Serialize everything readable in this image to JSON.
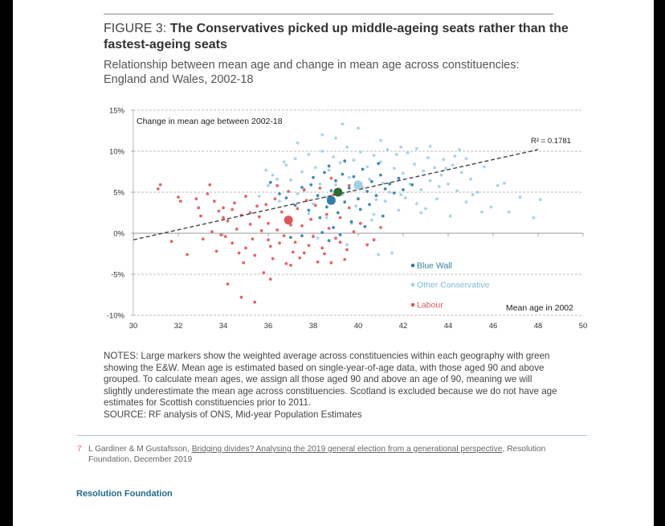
{
  "figure": {
    "label": "FIGURE 3:",
    "title": "The Conservatives picked up middle-ageing seats rather than the fastest-ageing seats",
    "subtitle_line1": "Relationship between mean age and change in mean age across constituencies:",
    "subtitle_line2": "England and Wales, 2002-18"
  },
  "notes": {
    "text": "NOTES: Large markers show the weighted average across constituencies within each geography with green showing the E&W. Mean age is estimated based on single-year-of-age data, with those aged 90 and above grouped. To calculate mean ages, we assign all those aged 90 and above an age of 90, meaning we will slightly underestimate the mean age across constituencies. Scotland is excluded because we do not have age estimates for Scottish constituencies prior to 2011.",
    "source": "SOURCE: RF analysis of ONS, Mid-year Population Estimates"
  },
  "footnote": {
    "number": "7",
    "prefix": "L Gardiner & M Gustafsson, ",
    "ref_title": "Bridging divides? Analysing the 2019 general election from a generational perspective",
    "suffix": ", Resolution",
    "line2": "Foundation, December 2019"
  },
  "brand": "Resolution Foundation",
  "colors": {
    "blue_wall": "#2e7ea6",
    "other_conservative": "#9fd0e4",
    "labour": "#e0575b",
    "ew_average": "#2e6b2e",
    "trend": "#444444",
    "grid": "#a8a8a8"
  },
  "chart_data": {
    "type": "scatter",
    "ylabel": "Change in mean age between 2002-18",
    "xlabel": "Mean age in 2002",
    "xlim": [
      30,
      50
    ],
    "ylim": [
      -10,
      15
    ],
    "x_ticks": [
      30,
      32,
      34,
      36,
      38,
      40,
      42,
      44,
      46,
      48,
      50
    ],
    "y_ticks": [
      {
        "value": 15,
        "label": "15%"
      },
      {
        "value": 10,
        "label": "10%"
      },
      {
        "value": 5,
        "label": "5%"
      },
      {
        "value": 0,
        "label": "0%"
      },
      {
        "value": -5,
        "label": "-5%"
      },
      {
        "value": -10,
        "label": "-10%"
      }
    ],
    "grid": true,
    "r_squared_label": "R² = 0.1781",
    "trendline": {
      "x": [
        30,
        48
      ],
      "y": [
        -0.8,
        10.2
      ]
    },
    "legend": {
      "placement": "bottom-center",
      "items": [
        {
          "key": "blue_wall",
          "label": "Blue Wall"
        },
        {
          "key": "other_conservative",
          "label": "Other Conservative"
        },
        {
          "key": "labour",
          "label": "Labour"
        }
      ]
    },
    "averages": [
      {
        "series": "Labour",
        "x": 36.9,
        "y": 1.6
      },
      {
        "series": "Other Conservative",
        "x": 40.0,
        "y": 5.9
      },
      {
        "series": "Blue Wall",
        "x": 38.8,
        "y": 4.0
      },
      {
        "series": "E&W",
        "x": 39.1,
        "y": 5.0
      }
    ],
    "series": [
      {
        "name": "Labour",
        "points": [
          [
            31.1,
            5.4
          ],
          [
            31.2,
            5.9
          ],
          [
            32.0,
            4.4
          ],
          [
            32.1,
            3.9
          ],
          [
            32.8,
            4.2
          ],
          [
            33.0,
            2.1
          ],
          [
            33.3,
            4.8
          ],
          [
            33.6,
            3.9
          ],
          [
            33.8,
            2.7
          ],
          [
            34.0,
            3.1
          ],
          [
            34.2,
            1.5
          ],
          [
            34.4,
            2.9
          ],
          [
            34.6,
            0.5
          ],
          [
            34.8,
            2.2
          ],
          [
            35.0,
            4.5
          ],
          [
            35.2,
            1.1
          ],
          [
            35.3,
            -0.7
          ],
          [
            35.6,
            2.0
          ],
          [
            35.7,
            0.3
          ],
          [
            35.9,
            3.5
          ],
          [
            36.0,
            1.2
          ],
          [
            36.1,
            -1.6
          ],
          [
            36.3,
            4.2
          ],
          [
            36.4,
            0.4
          ],
          [
            36.6,
            2.6
          ],
          [
            36.7,
            -0.3
          ],
          [
            36.9,
            5.1
          ],
          [
            37.0,
            1.0
          ],
          [
            37.2,
            -1.1
          ],
          [
            37.3,
            3.0
          ],
          [
            37.5,
            0.9
          ],
          [
            37.6,
            -2.4
          ],
          [
            37.7,
            4.0
          ],
          [
            37.9,
            1.7
          ],
          [
            38.0,
            -0.4
          ],
          [
            38.1,
            3.4
          ],
          [
            38.3,
            5.5
          ],
          [
            38.4,
            -1.8
          ],
          [
            38.6,
            2.3
          ],
          [
            38.7,
            0.6
          ],
          [
            38.9,
            4.7
          ],
          [
            39.0,
            -0.6
          ],
          [
            39.2,
            1.9
          ],
          [
            39.4,
            -3.2
          ],
          [
            39.6,
            3.1
          ],
          [
            39.8,
            0.2
          ],
          [
            40.1,
            1.2
          ],
          [
            40.4,
            -1.4
          ],
          [
            40.7,
            -0.8
          ],
          [
            41.0,
            0.7
          ],
          [
            34.1,
            -0.4
          ],
          [
            34.4,
            -1.2
          ],
          [
            34.7,
            -2.4
          ],
          [
            34.9,
            -3.6
          ],
          [
            35.0,
            -1.8
          ],
          [
            35.4,
            -2.7
          ],
          [
            35.8,
            -4.8
          ],
          [
            36.2,
            -3.1
          ],
          [
            36.5,
            -1.2
          ],
          [
            36.8,
            -3.7
          ],
          [
            37.1,
            -2.3
          ],
          [
            37.4,
            -3.0
          ],
          [
            37.8,
            -1.5
          ],
          [
            38.2,
            -3.5
          ],
          [
            38.5,
            -2.5
          ],
          [
            38.8,
            -3.6
          ],
          [
            39.2,
            -1.1
          ],
          [
            39.5,
            -2.0
          ],
          [
            33.1,
            -0.7
          ],
          [
            33.5,
            0.2
          ],
          [
            32.9,
            3.1
          ],
          [
            33.9,
            -0.2
          ],
          [
            34.2,
            -6.2
          ],
          [
            34.8,
            -7.8
          ],
          [
            35.4,
            -8.4
          ],
          [
            36.1,
            -5.6
          ],
          [
            33.7,
            -2.2
          ],
          [
            32.4,
            -2.6
          ],
          [
            37.0,
            -3.9
          ],
          [
            36.0,
            -0.8
          ],
          [
            34.5,
            3.7
          ],
          [
            35.5,
            3.3
          ],
          [
            37.6,
            5.3
          ],
          [
            38.8,
            6.7
          ],
          [
            39.6,
            5.8
          ],
          [
            36.4,
            5.8
          ],
          [
            35.2,
            2.5
          ],
          [
            34.0,
            1.9
          ],
          [
            33.4,
            5.9
          ],
          [
            31.7,
            -1.0
          ]
        ]
      },
      {
        "name": "Blue Wall",
        "points": [
          [
            36.1,
            6.2
          ],
          [
            36.8,
            4.3
          ],
          [
            37.2,
            3.4
          ],
          [
            37.5,
            5.6
          ],
          [
            37.8,
            2.8
          ],
          [
            38.0,
            6.8
          ],
          [
            38.2,
            4.6
          ],
          [
            38.3,
            1.9
          ],
          [
            38.5,
            7.4
          ],
          [
            38.6,
            3.2
          ],
          [
            38.8,
            5.2
          ],
          [
            38.9,
            0.7
          ],
          [
            39.0,
            6.4
          ],
          [
            39.1,
            2.5
          ],
          [
            39.3,
            7.2
          ],
          [
            39.4,
            3.8
          ],
          [
            39.6,
            5.5
          ],
          [
            39.7,
            1.4
          ],
          [
            39.8,
            6.9
          ],
          [
            40.0,
            4.2
          ],
          [
            40.1,
            2.9
          ],
          [
            40.2,
            7.8
          ],
          [
            40.4,
            5.1
          ],
          [
            40.5,
            3.5
          ],
          [
            40.6,
            6.3
          ],
          [
            40.8,
            4.6
          ],
          [
            41.0,
            7.1
          ],
          [
            41.2,
            5.4
          ],
          [
            41.4,
            6.0
          ],
          [
            41.6,
            4.9
          ],
          [
            41.8,
            6.7
          ],
          [
            42.0,
            5.3
          ],
          [
            38.4,
            0.1
          ],
          [
            37.5,
            -0.3
          ],
          [
            37.0,
            -0.5
          ],
          [
            38.7,
            -0.9
          ],
          [
            39.2,
            -0.2
          ],
          [
            40.3,
            0.8
          ],
          [
            41.1,
            2.1
          ],
          [
            42.4,
            5.9
          ],
          [
            36.5,
            4.8
          ],
          [
            37.9,
            5.9
          ],
          [
            38.7,
            8.2
          ],
          [
            39.4,
            8.8
          ],
          [
            40.9,
            8.5
          ]
        ]
      },
      {
        "name": "Other Conservative",
        "points": [
          [
            35.6,
            4.5
          ],
          [
            36.0,
            5.8
          ],
          [
            36.2,
            7.1
          ],
          [
            36.5,
            3.9
          ],
          [
            36.8,
            8.3
          ],
          [
            37.0,
            6.5
          ],
          [
            37.2,
            9.1
          ],
          [
            37.3,
            4.8
          ],
          [
            37.5,
            7.5
          ],
          [
            37.6,
            5.2
          ],
          [
            37.8,
            9.6
          ],
          [
            38.0,
            3.6
          ],
          [
            38.1,
            8.0
          ],
          [
            38.3,
            6.0
          ],
          [
            38.4,
            10.0
          ],
          [
            38.6,
            4.4
          ],
          [
            38.7,
            7.7
          ],
          [
            38.9,
            9.3
          ],
          [
            39.0,
            5.9
          ],
          [
            39.2,
            8.6
          ],
          [
            39.3,
            4.7
          ],
          [
            39.5,
            10.5
          ],
          [
            39.6,
            6.8
          ],
          [
            39.8,
            8.9
          ],
          [
            39.9,
            3.3
          ],
          [
            40.1,
            9.9
          ],
          [
            40.2,
            5.6
          ],
          [
            40.4,
            8.1
          ],
          [
            40.5,
            6.6
          ],
          [
            40.7,
            9.5
          ],
          [
            40.8,
            4.1
          ],
          [
            41.0,
            8.7
          ],
          [
            41.1,
            6.1
          ],
          [
            41.3,
            10.2
          ],
          [
            41.4,
            5.0
          ],
          [
            41.6,
            7.9
          ],
          [
            41.7,
            9.6
          ],
          [
            41.9,
            4.7
          ],
          [
            42.0,
            7.3
          ],
          [
            42.2,
            9.8
          ],
          [
            42.3,
            6.0
          ],
          [
            42.5,
            8.4
          ],
          [
            42.6,
            10.3
          ],
          [
            42.8,
            5.3
          ],
          [
            42.9,
            7.6
          ],
          [
            43.1,
            9.2
          ],
          [
            43.2,
            6.4
          ],
          [
            43.4,
            8.0
          ],
          [
            43.5,
            4.2
          ],
          [
            43.7,
            7.1
          ],
          [
            43.8,
            9.0
          ],
          [
            44.0,
            6.0
          ],
          [
            44.2,
            8.3
          ],
          [
            44.4,
            5.2
          ],
          [
            44.6,
            7.4
          ],
          [
            44.8,
            3.8
          ],
          [
            45.0,
            6.6
          ],
          [
            45.3,
            5.0
          ],
          [
            45.6,
            8.1
          ],
          [
            45.9,
            3.2
          ],
          [
            46.2,
            5.8
          ],
          [
            46.7,
            2.6
          ],
          [
            47.2,
            4.4
          ],
          [
            47.8,
            1.9
          ],
          [
            48.1,
            4.1
          ],
          [
            45.5,
            2.6
          ],
          [
            44.1,
            2.1
          ],
          [
            43.0,
            3.0
          ],
          [
            42.6,
            3.6
          ],
          [
            41.8,
            2.8
          ],
          [
            40.7,
            2.3
          ],
          [
            39.7,
            1.2
          ],
          [
            38.6,
            1.9
          ],
          [
            37.8,
            2.4
          ],
          [
            36.7,
            8.7
          ],
          [
            37.3,
            11.0
          ],
          [
            38.4,
            12.0
          ],
          [
            39.0,
            11.6
          ],
          [
            40.0,
            12.8
          ],
          [
            41.0,
            11.3
          ],
          [
            39.3,
            13.3
          ],
          [
            41.9,
            10.5
          ],
          [
            43.2,
            10.6
          ],
          [
            44.3,
            9.4
          ],
          [
            44.8,
            9.1
          ],
          [
            35.9,
            7.7
          ],
          [
            36.4,
            6.6
          ],
          [
            42.1,
            4.3
          ],
          [
            43.6,
            5.7
          ],
          [
            45.1,
            4.7
          ],
          [
            46.5,
            6.1
          ],
          [
            44.5,
            10.2
          ],
          [
            41.5,
            -2.4
          ],
          [
            40.9,
            -2.6
          ],
          [
            39.5,
            -1.4
          ],
          [
            38.2,
            -0.6
          ],
          [
            40.6,
            1.6
          ],
          [
            42.8,
            2.5
          ],
          [
            41.2,
            3.9
          ],
          [
            43.9,
            7.9
          ]
        ]
      }
    ]
  }
}
